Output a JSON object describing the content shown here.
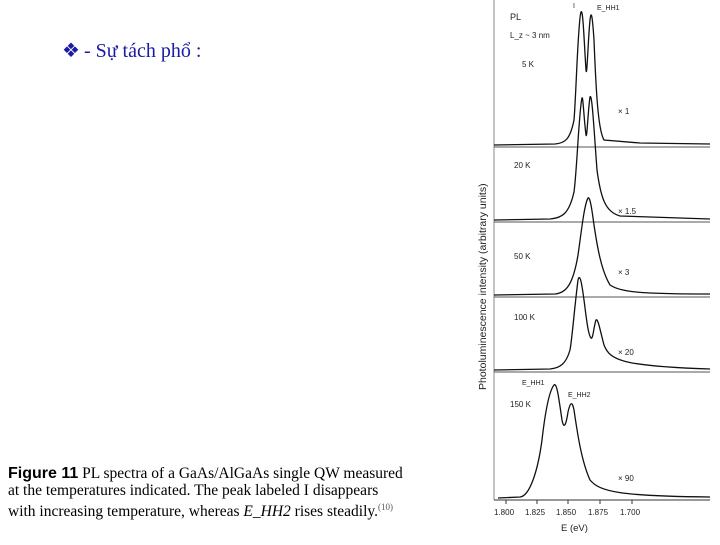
{
  "heading": {
    "bullet": "❖",
    "text": "- Sự tách phổ :"
  },
  "figure": {
    "ylabel": "Photoluminescence intensity (arbitrary units)",
    "xlabel": "E (eV)",
    "xticks": [
      "1.800",
      "1.825",
      "1.850",
      "1.875",
      "1.700"
    ],
    "top_labels": {
      "pl": "PL",
      "lz": "L_z ~ 3 nm",
      "i_label": "I",
      "ehh1_top": "E_HH1"
    },
    "panels": [
      {
        "temp": "5 K",
        "scale": "× 1"
      },
      {
        "temp": "20 K",
        "scale": "× 1.5"
      },
      {
        "temp": "50 K",
        "scale": "× 3"
      },
      {
        "temp": "100 K",
        "scale": "× 20"
      },
      {
        "temp": "150 K",
        "scale": "× 90"
      }
    ],
    "bottom_labels": {
      "ehh1": "E_HH1",
      "ehh2": "E_HH2"
    }
  },
  "caption": {
    "fig": "Figure 11",
    "line1": "PL spectra of a GaAs/AlGaAs single QW measured",
    "line2": "at the temperatures indicated. The peak labeled I disappears",
    "line3a": "with increasing temperature, whereas",
    "ehh2": "E_HH2",
    "line3b": "rises steadily.",
    "ref": "(10)"
  }
}
